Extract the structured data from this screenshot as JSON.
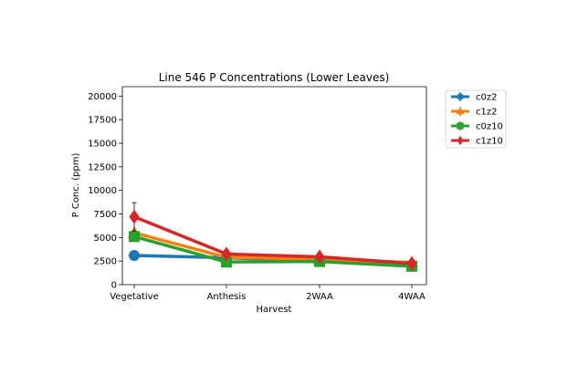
{
  "chart_data": {
    "type": "line",
    "title": "Line 546 P Concentrations (Lower Leaves)",
    "xlabel": "Harvest",
    "ylabel": "P Conc. (ppm)",
    "categories": [
      "Vegetative",
      "Anthesis",
      "2WAA",
      "4WAA"
    ],
    "ylim": [
      0,
      21000
    ],
    "yticks": [
      0,
      2500,
      5000,
      7500,
      10000,
      12500,
      15000,
      17500,
      20000
    ],
    "grid": false,
    "legend_position": "outside-top-right",
    "series": [
      {
        "name": "c0z2",
        "color": "#1f77b4",
        "marker": "circle",
        "values": [
          3100,
          2850,
          2500,
          2050
        ],
        "errors": [
          150,
          100,
          100,
          100
        ]
      },
      {
        "name": "c1z2",
        "color": "#ff7f0e",
        "marker": "triangle",
        "values": [
          5500,
          2900,
          2700,
          2350
        ],
        "errors": [
          300,
          150,
          150,
          150
        ]
      },
      {
        "name": "c0z10",
        "color": "#2ca02c",
        "marker": "square",
        "values": [
          5100,
          2400,
          2450,
          1950
        ],
        "errors": [
          400,
          150,
          150,
          150
        ]
      },
      {
        "name": "c1z10",
        "color": "#d62728",
        "marker": "diamond",
        "values": [
          7200,
          3250,
          2950,
          2250
        ],
        "errors": [
          1500,
          200,
          200,
          150
        ]
      }
    ]
  }
}
